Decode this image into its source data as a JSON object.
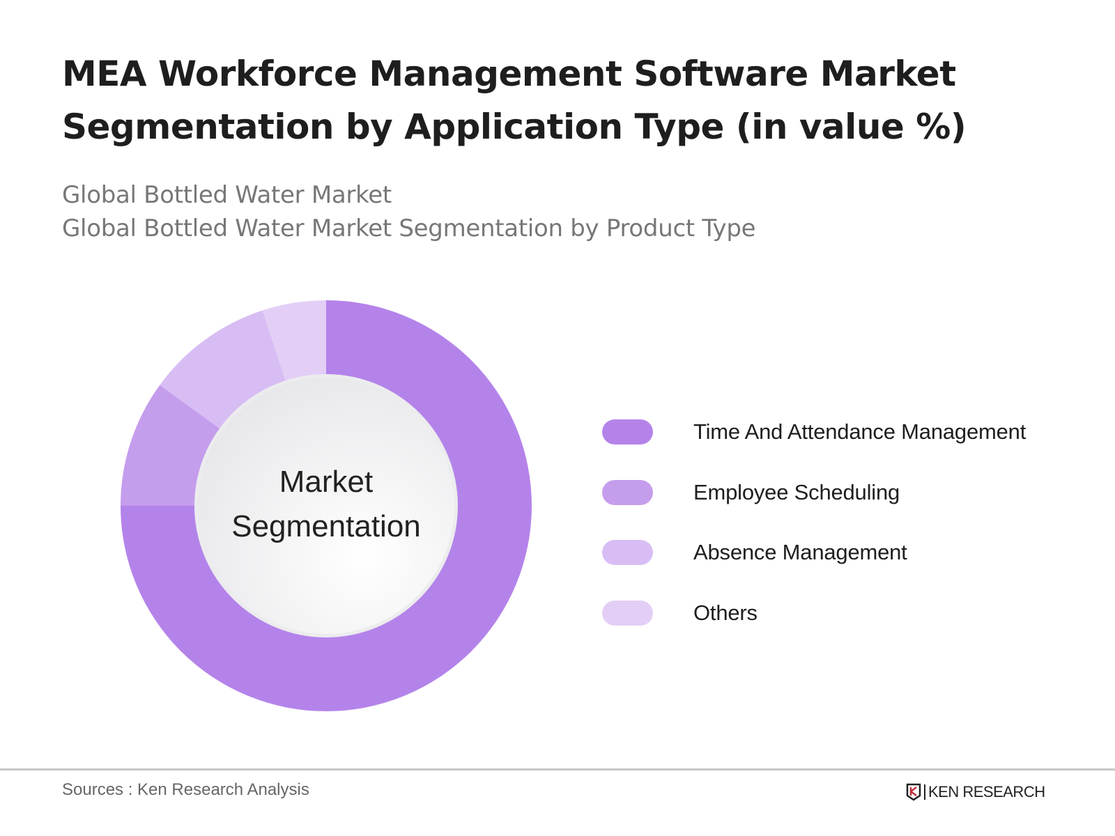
{
  "title_line1": "MEA Workforce Management Software Market",
  "title_line2": "Segmentation by Application Type (in value %)",
  "subtitle_line1": "Global Bottled Water Market",
  "subtitle_line2": "Global Bottled Water Market Segmentation by Product Type",
  "source": "Sources : Ken Research Analysis",
  "logo_text": "KEN RESEARCH",
  "chart_data": {
    "type": "pie",
    "subtype": "donut",
    "center_label_line1": "Market",
    "center_label_line2": "Segmentation",
    "legend_placement": "right",
    "categories": [
      "Time And Attendance Management",
      "Employee Scheduling",
      "Absence Management",
      "Others"
    ],
    "values": [
      75,
      10,
      10,
      5
    ],
    "colors": [
      "#b483ea",
      "#c59ded",
      "#d8bdf4",
      "#e3cff6"
    ]
  }
}
